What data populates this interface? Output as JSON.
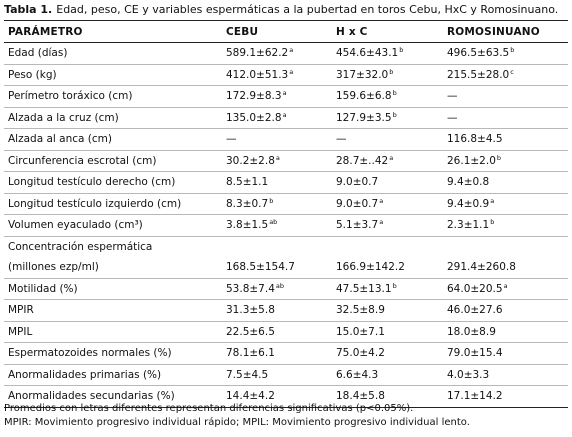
{
  "caption": {
    "label": "Tabla 1.",
    "text": "Edad, peso, CE y variables espermáticas a la pubertad en toros Cebu, HxC y Romosinuano."
  },
  "table": {
    "headers": [
      "PARÁMETRO",
      "CEBU",
      "H x C",
      "ROMOSINUANO"
    ],
    "rows": [
      {
        "param": "Edad (días)",
        "cebu": "589.1±62.2",
        "cebu_sup": "a",
        "hxc": "454.6±43.1",
        "hxc_sup": "b",
        "romo": "496.5±63.5",
        "romo_sup": "b"
      },
      {
        "param": "Peso (kg)",
        "cebu": "412.0±51.3",
        "cebu_sup": "a",
        "hxc": "317±32.0",
        "hxc_sup": "b",
        "romo": "215.5±28.0",
        "romo_sup": "c"
      },
      {
        "param": "Perímetro toráxico (cm)",
        "cebu": "172.9±8.3",
        "cebu_sup": "a",
        "hxc": "159.6±6.8",
        "hxc_sup": "b",
        "romo": "—",
        "romo_sup": ""
      },
      {
        "param": "Alzada a la cruz (cm)",
        "cebu": "135.0±2.8",
        "cebu_sup": "a",
        "hxc": "127.9±3.5",
        "hxc_sup": "b",
        "romo": "—",
        "romo_sup": ""
      },
      {
        "param": "Alzada al anca (cm)",
        "cebu": "—",
        "cebu_sup": "",
        "hxc": "—",
        "hxc_sup": "",
        "romo": "116.8±4.5",
        "romo_sup": ""
      },
      {
        "param": "Circunferencia escrotal (cm)",
        "cebu": "30.2±2.8",
        "cebu_sup": "a",
        "hxc": "28.7±..42",
        "hxc_sup": "a",
        "romo": "26.1±2.0",
        "romo_sup": "b"
      },
      {
        "param": "Longitud testículo derecho (cm)",
        "cebu": "8.5±1.1",
        "cebu_sup": "",
        "hxc": "9.0±0.7",
        "hxc_sup": "",
        "romo": "9.4±0.8",
        "romo_sup": ""
      },
      {
        "param": "Longitud testículo izquierdo (cm)",
        "cebu": "8.3±0.7",
        "cebu_sup": "b",
        "hxc": "9.0±0.7",
        "hxc_sup": "a",
        "romo": "9.4±0.9",
        "romo_sup": "a"
      },
      {
        "param": "Volumen eyaculado (cm³)",
        "cebu": "3.8±1.5",
        "cebu_sup": "ab",
        "hxc": "5.1±3.7",
        "hxc_sup": "a",
        "romo": "2.3±1.1",
        "romo_sup": "b"
      },
      {
        "param": "Concentración espermática",
        "cebu": "",
        "cebu_sup": "",
        "hxc": "",
        "hxc_sup": "",
        "romo": "",
        "romo_sup": ""
      },
      {
        "param": "(millones ezp/ml)",
        "cebu": "168.5±154.7",
        "cebu_sup": "",
        "hxc": "166.9±142.2",
        "hxc_sup": "",
        "romo": "291.4±260.8",
        "romo_sup": ""
      },
      {
        "param": "Motilidad (%)",
        "cebu": "53.8±7.4",
        "cebu_sup": "ab",
        "hxc": "47.5±13.1",
        "hxc_sup": "b",
        "romo": "64.0±20.5",
        "romo_sup": "a"
      },
      {
        "param": "MPIR",
        "cebu": "31.3±5.8",
        "cebu_sup": "",
        "hxc": "32.5±8.9",
        "hxc_sup": "",
        "romo": "46.0±27.6",
        "romo_sup": ""
      },
      {
        "param": "MPIL",
        "cebu": "22.5±6.5",
        "cebu_sup": "",
        "hxc": "15.0±7.1",
        "hxc_sup": "",
        "romo": "18.0±8.9",
        "romo_sup": ""
      },
      {
        "param": "Espermatozoides normales (%)",
        "cebu": "78.1±6.1",
        "cebu_sup": "",
        "hxc": "75.0±4.2",
        "hxc_sup": "",
        "romo": "79.0±15.4",
        "romo_sup": ""
      },
      {
        "param": "Anormalidades primarias (%)",
        "cebu": "7.5±4.5",
        "cebu_sup": "",
        "hxc": "6.6±4.3",
        "hxc_sup": "",
        "romo": "4.0±3.3",
        "romo_sup": ""
      },
      {
        "param": "Anormalidades secundarias (%)",
        "cebu": "14.4±4.2",
        "cebu_sup": "",
        "hxc": "18.4±5.8",
        "hxc_sup": "",
        "romo": "17.1±14.2",
        "romo_sup": ""
      }
    ]
  },
  "notes": {
    "line1": "Promedios con letras diferentes representan diferencias significativas (p<0.05%).",
    "line2": "MPIR: Movimiento progresivo individual rápido; MPIL: Movimiento progresivo individual lento."
  }
}
